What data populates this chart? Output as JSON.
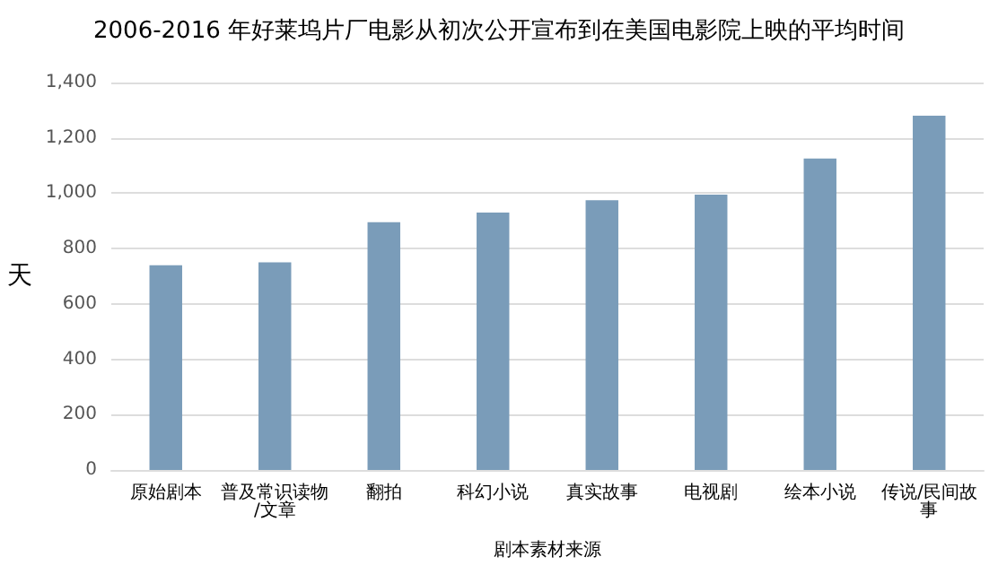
{
  "chart_data": {
    "type": "bar",
    "title": "2006-2016 年好莱坞片厂电影从初次公开宣布到在美国电影院上映的平均时间",
    "xlabel": "剧本素材来源",
    "ylabel": "天",
    "categories": [
      "原始剧本",
      "普及常识读物/文章",
      "翻拍",
      "科幻小说",
      "真实故事",
      "电视剧",
      "绘本小说",
      "传说/民间故事"
    ],
    "values": [
      740,
      750,
      895,
      930,
      975,
      995,
      1125,
      1280
    ],
    "color": "#7a9cb9",
    "ylim": [
      0,
      1400
    ],
    "yticks": [
      {
        "value": 0,
        "label": "0"
      },
      {
        "value": 200,
        "label": "200"
      },
      {
        "value": 400,
        "label": "400"
      },
      {
        "value": 600,
        "label": "600"
      },
      {
        "value": 800,
        "label": "800"
      },
      {
        "value": 1000,
        "label": "1,000"
      },
      {
        "value": 1200,
        "label": "1,200"
      },
      {
        "value": 1400,
        "label": "1,400"
      }
    ],
    "grid": "y"
  }
}
